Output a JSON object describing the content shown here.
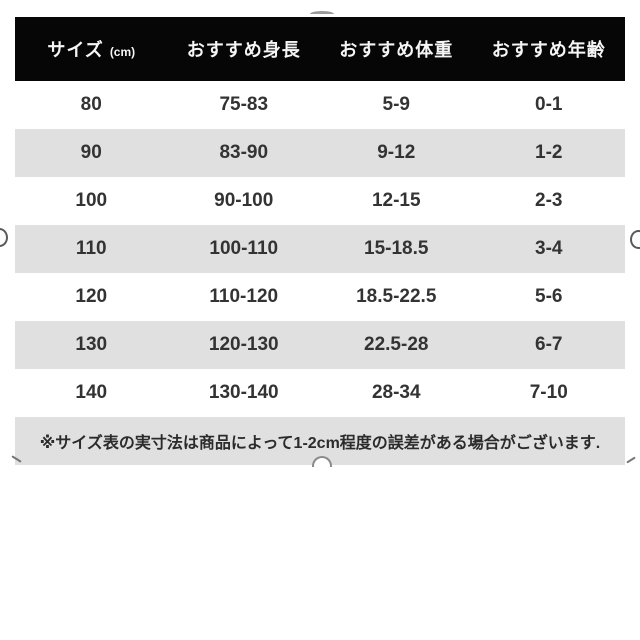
{
  "chart_data": {
    "type": "table",
    "columns": [
      "サイズ",
      "おすすめ身長",
      "おすすめ体重",
      "おすすめ年齢"
    ],
    "size_unit": "(cm)",
    "rows": [
      [
        "80",
        "75-83",
        "5-9",
        "0-1"
      ],
      [
        "90",
        "83-90",
        "9-12",
        "1-2"
      ],
      [
        "100",
        "90-100",
        "12-15",
        "2-3"
      ],
      [
        "110",
        "100-110",
        "15-18.5",
        "3-4"
      ],
      [
        "120",
        "110-120",
        "18.5-22.5",
        "5-6"
      ],
      [
        "130",
        "120-130",
        "22.5-28",
        "6-7"
      ],
      [
        "140",
        "130-140",
        "28-34",
        "7-10"
      ]
    ],
    "note": "※サイズ表の実寸法は商品によって1-2cm程度の誤差がある場合がございます.",
    "layout": {
      "header_style": "black bar, white bold text",
      "zebra_striping": "rows 90/110/130 and note row shaded gray"
    }
  },
  "colors": {
    "header_bg": "#060606",
    "header_text": "#f5f5f5",
    "stripe": "#e0e0e0",
    "text": "#333333",
    "note_text": "#2b2b2b"
  },
  "decorations": {
    "top_hole": "hanger-hole arc sliver above header",
    "side_holes": "small circular notches at left/right table edges",
    "bottom_hole": "semicircular notch at bottom center of note row",
    "corner_ticks": "small diagonal marks at bottom-left and bottom-right corners"
  }
}
